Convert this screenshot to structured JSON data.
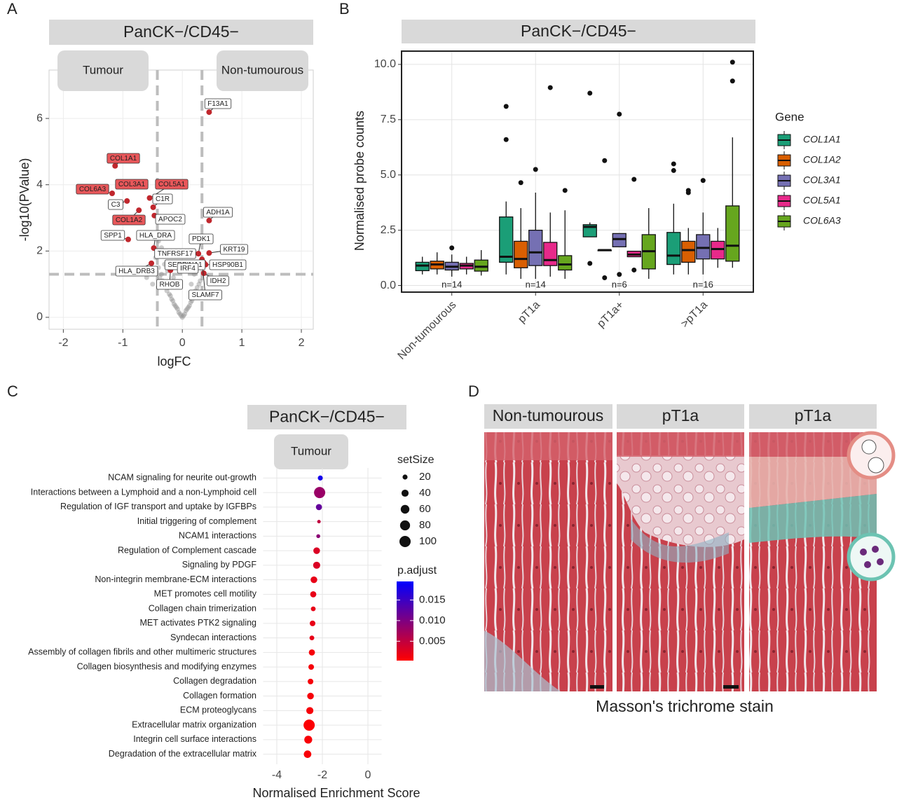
{
  "panel_labels": [
    "A",
    "B",
    "C",
    "D"
  ],
  "chart_data": [
    {
      "type": "scatter",
      "facet": "PanCK−/CD45−",
      "groups": [
        "Tumour",
        "Non-tumourous"
      ],
      "xlabel": "logFC",
      "ylabel": "-log10(PValue)",
      "xlim": [
        -2.24,
        2.2
      ],
      "ylim": [
        -0.36,
        7.46
      ],
      "xticks": [
        -2,
        -1,
        0,
        1,
        2
      ],
      "yticks": [
        0,
        2,
        4,
        6
      ],
      "grid": true,
      "vlines": [
        -0.42,
        0.33
      ],
      "hline": 1.3,
      "line_color": "#bdbdbd",
      "series": [
        {
          "color": "#8f8f8f",
          "x": [
            -0.45,
            -0.4,
            -0.38,
            -0.35,
            -0.33,
            -0.3,
            -0.28,
            -0.26,
            -0.24,
            -0.22,
            -0.2,
            -0.18,
            -0.16,
            -0.14,
            -0.12,
            -0.1,
            -0.08,
            -0.06,
            -0.04,
            -0.02,
            0,
            0.02,
            0.04,
            0.06,
            0.08,
            0.1,
            0.12,
            0.14,
            0.16,
            0.18,
            0.2,
            0.22,
            0.25,
            0.28,
            0.3,
            -0.3,
            -0.25,
            -0.2,
            -0.35,
            -0.15,
            0.15,
            0.2,
            -0.4,
            -0.5,
            -0.6,
            0.3
          ],
          "y": [
            1.8,
            1.5,
            1.2,
            1.3,
            1.1,
            1.0,
            0.95,
            0.8,
            0.9,
            0.7,
            0.65,
            0.55,
            0.5,
            0.4,
            0.35,
            0.3,
            0.25,
            0.15,
            0.1,
            0.05,
            0,
            0.05,
            0.1,
            0.2,
            0.25,
            0.3,
            0.35,
            0.45,
            0.5,
            0.6,
            0.7,
            0.8,
            0.9,
            1.0,
            1.1,
            1.6,
            1.4,
            1.9,
            2.1,
            1.2,
            1.0,
            1.3,
            2.3,
            1.0,
            1.2,
            1.5
          ]
        },
        {
          "color": "#c0272d",
          "label_fill": "#e8575a",
          "labels": [
            "COL1A1",
            "COL3A1",
            "COL5A1",
            "COL6A3",
            "COL1A2"
          ],
          "x": [
            -1.13,
            -0.93,
            -0.55,
            -1.18,
            -0.73
          ],
          "y": [
            4.57,
            4.05,
            3.6,
            3.74,
            3.23
          ]
        },
        {
          "color": "#c0272d",
          "label_fill": "#ffffff",
          "labels": [
            "F13A1",
            "C3",
            "C1R",
            "APOC2",
            "ADH1A",
            "SPP1",
            "HLA_DRA",
            "PDK1",
            "KRT19",
            "TNFRSF17",
            "SERPINA1",
            "IRF4",
            "HSP90B1",
            "HLA_DRB3",
            "RHOB",
            "IDH2",
            "SLAMF7"
          ],
          "x": [
            0.45,
            -0.93,
            -0.49,
            -0.47,
            0.45,
            -0.91,
            -0.48,
            0.27,
            0.45,
            -0.32,
            0.33,
            0.36,
            0.39,
            -0.52,
            -0.2,
            0.36,
            0.33
          ],
          "y": [
            6.19,
            3.51,
            3.32,
            3.07,
            2.92,
            2.35,
            2.09,
            1.92,
            1.94,
            1.86,
            1.75,
            1.65,
            1.59,
            1.63,
            1.42,
            1.33,
            1.71
          ]
        }
      ]
    },
    {
      "type": "box",
      "facet": "PanCK−/CD45−",
      "ylabel": "Normalised probe counts",
      "categories": [
        "Non-tumourous",
        "pT1a",
        "pT1a+",
        ">pT1a"
      ],
      "annotations": [
        "n=14",
        "n=14",
        "n=6",
        "n=16"
      ],
      "ylim": [
        -0.3,
        10.6
      ],
      "yticks": [
        {
          "value": 0,
          "label": "0.0"
        },
        2.5,
        {
          "value": 5,
          "label": "5.0"
        },
        7.5,
        {
          "value": 10,
          "label": "10.0"
        }
      ],
      "grid": true,
      "legend_title": "Gene",
      "legend": "right",
      "series": [
        {
          "name": "COL1A1",
          "color": "#1b9e77",
          "min": [
            0.5,
            0.5,
            2.2,
            0.5
          ],
          "q1": [
            0.67,
            1.05,
            2.2,
            0.95
          ],
          "median": [
            0.9,
            1.3,
            2.65,
            1.35
          ],
          "q3": [
            1.05,
            3.1,
            2.75,
            2.4
          ],
          "max": [
            1.3,
            3.8,
            2.85,
            3.7
          ],
          "outliers": [
            [],
            [
              6.6,
              8.1
            ],
            [
              1.0,
              8.7
            ],
            [
              5.2,
              5.5
            ]
          ]
        },
        {
          "name": "COL1A2",
          "color": "#d95f02",
          "min": [
            0.5,
            0.3,
            1.6,
            0.5
          ],
          "q1": [
            0.75,
            0.8,
            1.6,
            1.05
          ],
          "median": [
            0.95,
            1.2,
            1.6,
            1.6
          ],
          "q3": [
            1.1,
            2.0,
            1.6,
            2.0
          ],
          "max": [
            1.5,
            3.5,
            1.6,
            2.6
          ],
          "outliers": [
            [],
            [
              4.65
            ],
            [
              0.35,
              5.65
            ],
            [
              4.2,
              4.3
            ]
          ]
        },
        {
          "name": "COL3A1",
          "color": "#7570b3",
          "min": [
            0.4,
            0.3,
            1.75,
            0.5
          ],
          "q1": [
            0.7,
            0.9,
            1.75,
            1.2
          ],
          "median": [
            0.85,
            1.5,
            2.1,
            1.7
          ],
          "q3": [
            1.05,
            2.5,
            2.35,
            2.3
          ],
          "max": [
            1.4,
            4.2,
            2.35,
            3.3
          ],
          "outliers": [
            [
              1.7
            ],
            [
              5.25
            ],
            [
              0.5,
              7.75
            ],
            [
              4.75
            ]
          ]
        },
        {
          "name": "COL5A1",
          "color": "#e7298a",
          "min": [
            0.5,
            0.4,
            1.3,
            0.8
          ],
          "q1": [
            0.75,
            0.9,
            1.3,
            1.2
          ],
          "median": [
            0.9,
            1.15,
            1.4,
            1.65
          ],
          "q3": [
            1.0,
            1.95,
            1.55,
            2.0
          ],
          "max": [
            1.3,
            3.3,
            1.55,
            2.6
          ],
          "outliers": [
            [],
            [
              8.95
            ],
            [
              0.7,
              4.8
            ],
            []
          ]
        },
        {
          "name": "COL6A3",
          "color": "#66a61e",
          "min": [
            0.45,
            0.3,
            0.3,
            0.8
          ],
          "q1": [
            0.65,
            0.7,
            0.75,
            1.1
          ],
          "median": [
            0.85,
            0.95,
            1.55,
            1.8
          ],
          "q3": [
            1.15,
            1.35,
            2.3,
            3.6
          ],
          "max": [
            1.6,
            3.4,
            3.5,
            6.7
          ],
          "outliers": [
            [],
            [
              4.3
            ],
            [],
            [
              9.25,
              10.1
            ]
          ]
        }
      ]
    },
    {
      "type": "dot",
      "facet": "PanCK−/CD45−",
      "group": "Tumour",
      "xlabel": "Normalised Enrichment Score",
      "categories": [
        "NCAM signaling for neurite out-growth",
        "Interactions between a Lymphoid and a non-Lymphoid cell",
        "Regulation of IGF transport and uptake by IGFBPs",
        "Initial triggering of complement",
        "NCAM1 interactions",
        "Regulation of Complement cascade",
        "Signaling by PDGF",
        "Non-integrin membrane-ECM interactions",
        "MET promotes cell motility",
        "Collagen chain trimerization",
        "MET activates PTK2 signaling",
        "Syndecan interactions",
        "Assembly of collagen fibrils and other multimeric structures",
        "Collagen biosynthesis and modifying enzymes",
        "Collagen degradation",
        "Collagen formation",
        "ECM proteoglycans",
        "Extracellular matrix organization",
        "Integrin cell surface interactions",
        "Degradation of the extracellular matrix"
      ],
      "values": [
        -2.09,
        -2.12,
        -2.15,
        -2.15,
        -2.18,
        -2.25,
        -2.25,
        -2.37,
        -2.4,
        -2.4,
        -2.43,
        -2.46,
        -2.46,
        -2.49,
        -2.52,
        -2.52,
        -2.55,
        -2.58,
        -2.62,
        -2.65
      ],
      "sizes": [
        20,
        100,
        30,
        10,
        12,
        35,
        40,
        35,
        30,
        18,
        25,
        18,
        30,
        25,
        25,
        35,
        40,
        100,
        50,
        45
      ],
      "p_adjust": [
        0.018,
        0.008,
        0.012,
        0.005,
        0.009,
        0.003,
        0.003,
        0.002,
        0.002,
        0.002,
        0.002,
        0.002,
        0.001,
        0.001,
        0.001,
        0.001,
        0.001,
        0.0005,
        0.0008,
        0.0008
      ],
      "xlim": [
        -4.6,
        0.6
      ],
      "xticks": [
        -4,
        -2,
        0
      ],
      "grid": true,
      "size_title": "setSize",
      "size_ticks": [
        20,
        40,
        60,
        80,
        100
      ],
      "color_title": "p.adjust",
      "colorlim": [
        0.0003,
        0.0195
      ],
      "color_low": "#ff0000",
      "color_high": "#0000ff",
      "color_ticks": [
        0.015,
        {
          "value": 0.01,
          "label": "0.010"
        },
        0.005
      ]
    }
  ],
  "images": {
    "titles": [
      "Non-tumourous",
      "pT1a",
      "pT1a"
    ],
    "caption": "Masson's trichrome stain"
  }
}
